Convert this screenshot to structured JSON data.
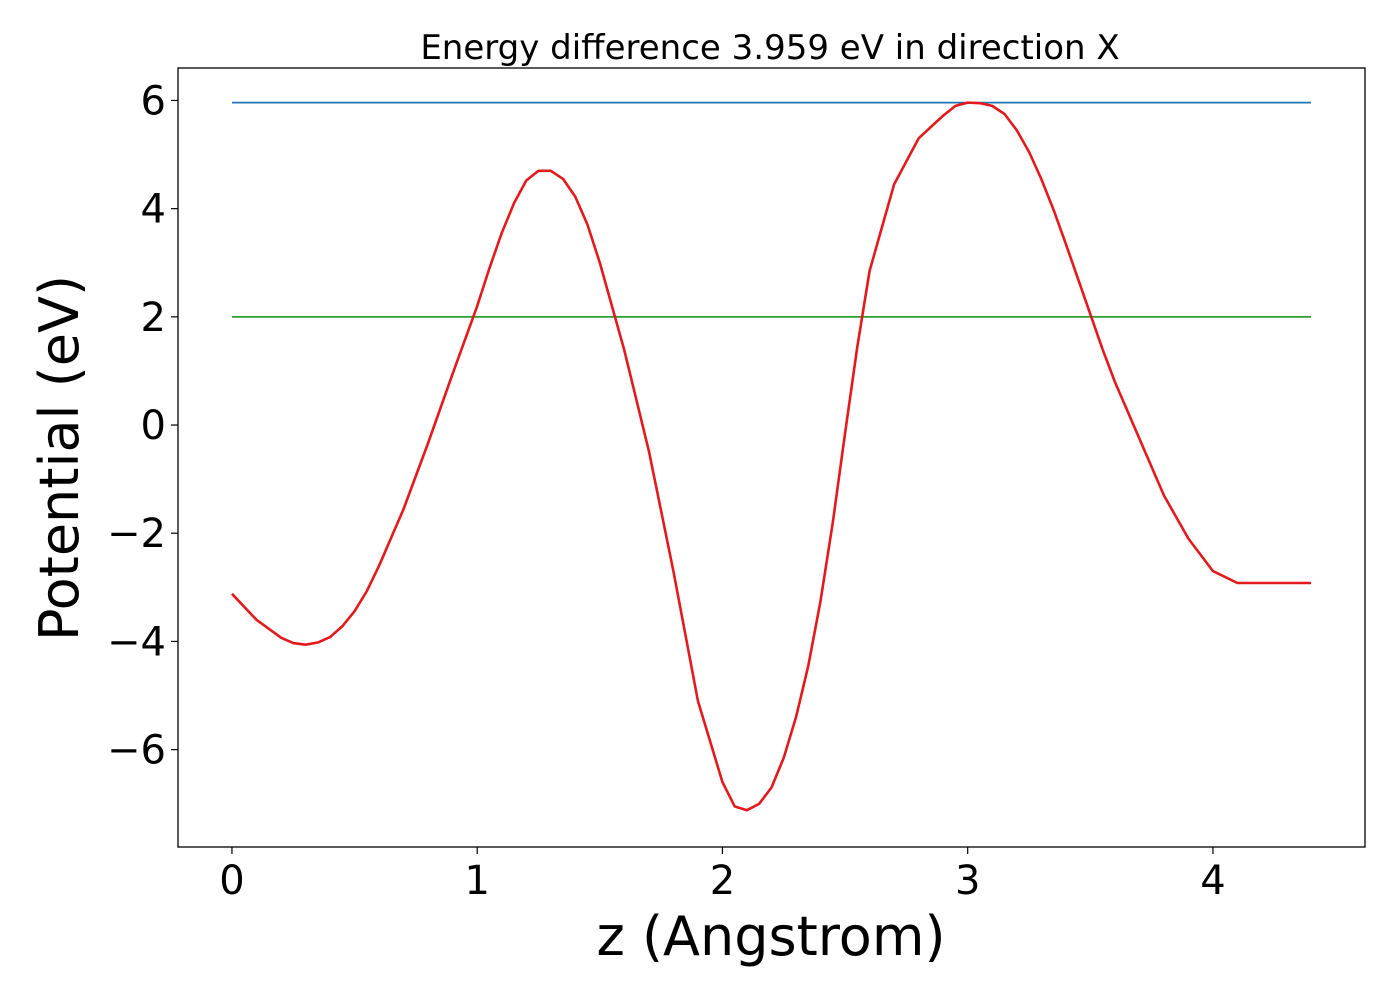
{
  "chart_data": {
    "type": "line",
    "title": "Energy difference 3.959 eV in direction X",
    "xlabel": "z (Angstrom)",
    "ylabel": "Potential (eV)",
    "xlim": [
      -0.22,
      4.62
    ],
    "ylim": [
      -7.8,
      6.6
    ],
    "xticks": [
      0,
      1,
      2,
      3,
      4
    ],
    "xtick_labels": [
      "0",
      "1",
      "2",
      "3",
      "4"
    ],
    "yticks": [
      -6,
      -4,
      -2,
      0,
      2,
      4,
      6
    ],
    "ytick_labels": [
      "−6",
      "−4",
      "−2",
      "0",
      "2",
      "4",
      "6"
    ],
    "grid": false,
    "legend": false,
    "colors": {
      "potential": "#e31a1c",
      "upper_level": "#1f77b4",
      "lower_level": "#2ca02c"
    },
    "series": [
      {
        "x": [
          0.0,
          0.1,
          0.2,
          0.25,
          0.3,
          0.35,
          0.4,
          0.45,
          0.5,
          0.55,
          0.6,
          0.7,
          0.8,
          0.9,
          1.0,
          1.05,
          1.1,
          1.15,
          1.2,
          1.25,
          1.3,
          1.35,
          1.4,
          1.45,
          1.5,
          1.6,
          1.7,
          1.8,
          1.9,
          2.0,
          2.05,
          2.1,
          2.15,
          2.2,
          2.25,
          2.3,
          2.35,
          2.4,
          2.45,
          2.5,
          2.55,
          2.6,
          2.7,
          2.8,
          2.9,
          2.95,
          3.0,
          3.05,
          3.1,
          3.15,
          3.2,
          3.25,
          3.3,
          3.35,
          3.4,
          3.45,
          3.5,
          3.55,
          3.6,
          3.7,
          3.8,
          3.9,
          4.0,
          4.1,
          4.2,
          4.3,
          4.4
        ],
        "y": [
          -3.12,
          -3.6,
          -3.93,
          -4.03,
          -4.06,
          -4.02,
          -3.92,
          -3.72,
          -3.44,
          -3.07,
          -2.6,
          -1.55,
          -0.33,
          0.95,
          2.2,
          2.9,
          3.55,
          4.1,
          4.52,
          4.7,
          4.7,
          4.55,
          4.22,
          3.7,
          3.0,
          1.38,
          -0.48,
          -2.7,
          -5.1,
          -6.6,
          -7.05,
          -7.12,
          -7.0,
          -6.7,
          -6.15,
          -5.4,
          -4.45,
          -3.25,
          -1.8,
          -0.15,
          1.45,
          2.85,
          4.45,
          5.3,
          5.72,
          5.9,
          5.96,
          5.95,
          5.9,
          5.75,
          5.45,
          5.05,
          4.55,
          3.98,
          3.35,
          2.7,
          2.05,
          1.4,
          0.8,
          -0.25,
          -1.3,
          -2.1,
          -2.7,
          -2.92,
          -2.92,
          -2.92,
          -2.92
        ]
      },
      {
        "x": [
          0.0,
          4.4
        ],
        "y": [
          5.96,
          5.96
        ]
      },
      {
        "x": [
          0.0,
          4.4
        ],
        "y": [
          2.0,
          2.0
        ]
      }
    ]
  }
}
